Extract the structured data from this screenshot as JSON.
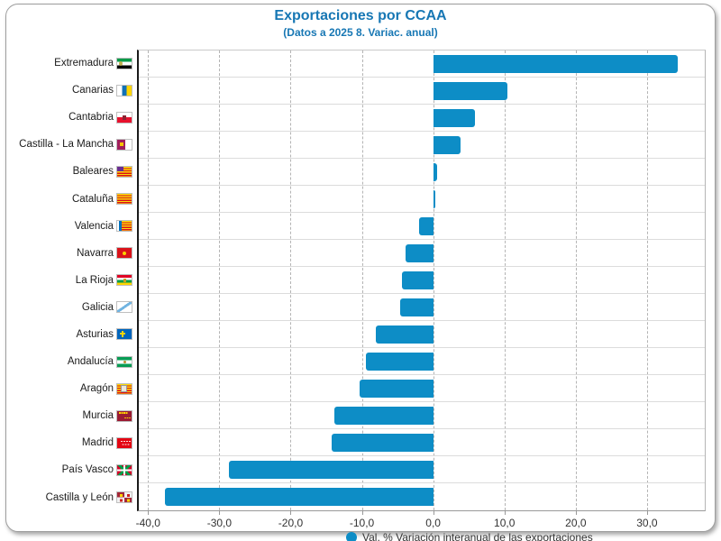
{
  "header": {
    "title": "Exportaciones por CCAA",
    "subtitle": "(Datos a 2025 8. Variac. anual)",
    "title_color": "#1777b4"
  },
  "chart_data": {
    "type": "bar",
    "orientation": "horizontal",
    "title": "Exportaciones por CCAA",
    "subtitle": "(Datos a 2025 8. Variac. anual)",
    "categories": [
      {
        "label": "Extremadura",
        "flag_icon": "flag-extremadura"
      },
      {
        "label": "Canarias",
        "flag_icon": "flag-canarias"
      },
      {
        "label": "Cantabria",
        "flag_icon": "flag-cantabria"
      },
      {
        "label": "Castilla - La Mancha",
        "flag_icon": "flag-castilla-la-mancha"
      },
      {
        "label": "Baleares",
        "flag_icon": "flag-baleares"
      },
      {
        "label": "Cataluña",
        "flag_icon": "flag-cataluna"
      },
      {
        "label": "Valencia",
        "flag_icon": "flag-valencia"
      },
      {
        "label": "Navarra",
        "flag_icon": "flag-navarra"
      },
      {
        "label": "La Rioja",
        "flag_icon": "flag-la-rioja"
      },
      {
        "label": "Galicia",
        "flag_icon": "flag-galicia"
      },
      {
        "label": "Asturias",
        "flag_icon": "flag-asturias"
      },
      {
        "label": "Andalucía",
        "flag_icon": "flag-andalucia"
      },
      {
        "label": "Aragón",
        "flag_icon": "flag-aragon"
      },
      {
        "label": "Murcia",
        "flag_icon": "flag-murcia"
      },
      {
        "label": "Madrid",
        "flag_icon": "flag-madrid"
      },
      {
        "label": "País Vasco",
        "flag_icon": "flag-pais-vasco"
      },
      {
        "label": "Castilla y León",
        "flag_icon": "flag-castilla-y-leon"
      }
    ],
    "values": [
      34.3,
      10.4,
      5.9,
      3.8,
      0.5,
      0.3,
      -2.0,
      -3.9,
      -4.4,
      -4.6,
      -8.0,
      -9.5,
      -10.3,
      -13.9,
      -14.2,
      -28.6,
      -37.6
    ],
    "unit": "%",
    "xlim": [
      -41.3,
      38.1
    ],
    "xticks": [
      -40,
      -30,
      -20,
      -10,
      0,
      10,
      20,
      30
    ],
    "xtick_labels": [
      "-40,0",
      "-30,0",
      "-20,0",
      "-10,0",
      "0,0",
      "10,0",
      "20,0",
      "30,0"
    ],
    "bar_color": "#0d8dc6",
    "grid": {
      "vertical": "dashed",
      "horizontal": "solid-row-separators"
    },
    "legend": {
      "position": "bottom-center-clipped",
      "marker_color": "#0d8dc6",
      "label": "Val. % Variación interanual de las exportaciones"
    }
  }
}
